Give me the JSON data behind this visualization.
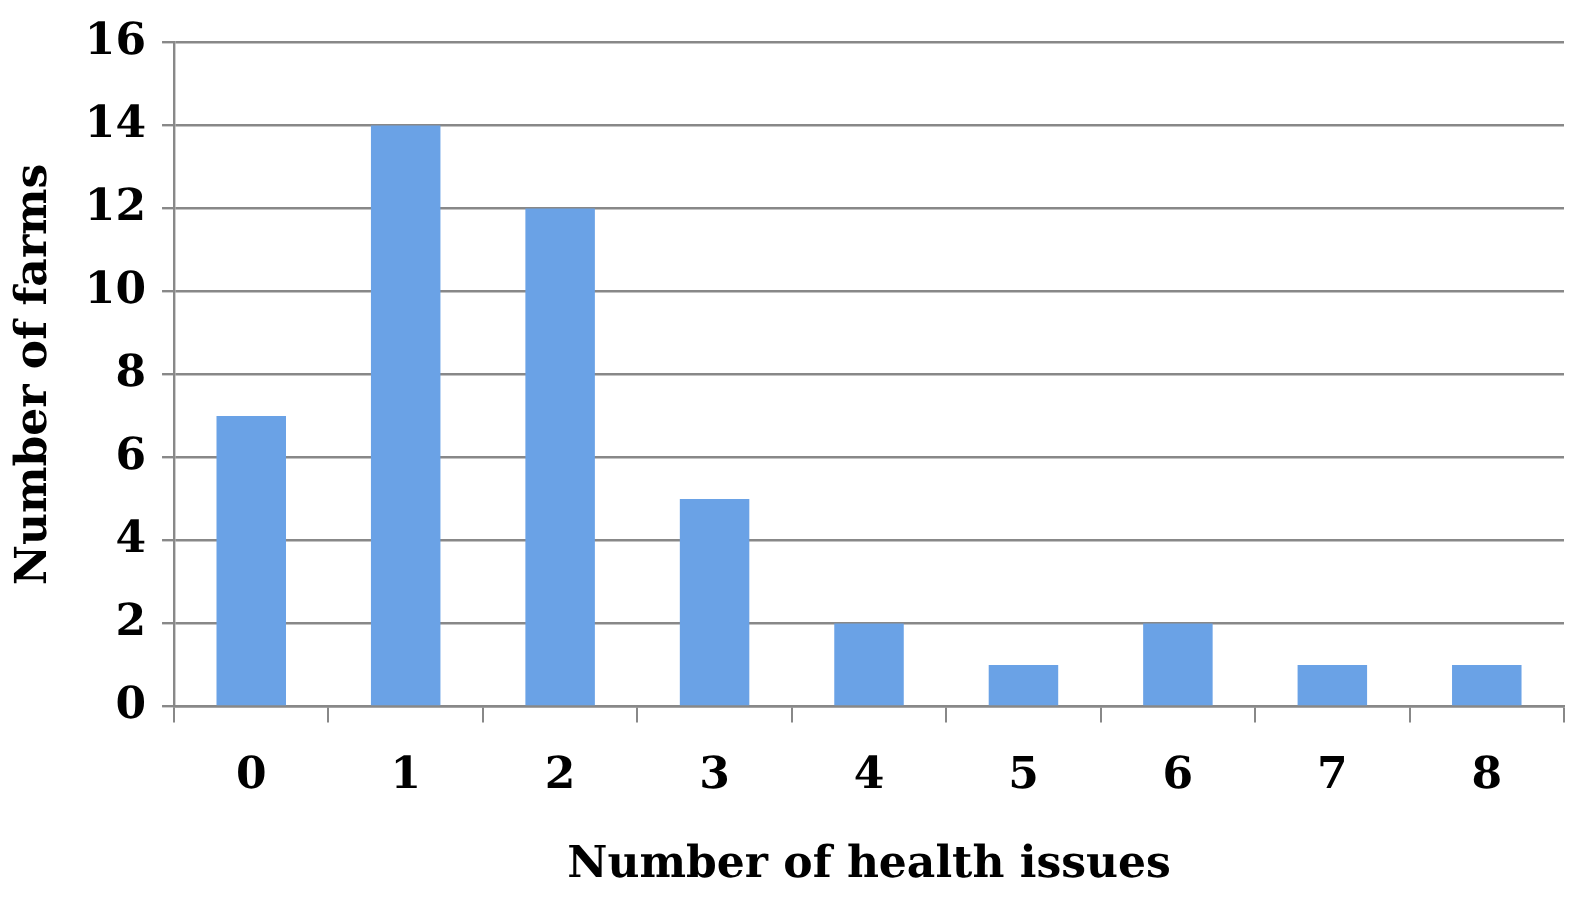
{
  "chart_data": {
    "type": "bar",
    "xlabel": "Number of health issues",
    "ylabel": "Number of farms",
    "categories": [
      "0",
      "1",
      "2",
      "3",
      "4",
      "5",
      "6",
      "7",
      "8"
    ],
    "values": [
      7,
      14,
      12,
      5,
      2,
      1,
      2,
      1,
      1
    ],
    "color": "#6aa2e6",
    "ylim": [
      0,
      16
    ],
    "yticks": [
      0,
      2,
      4,
      6,
      8,
      10,
      12,
      14,
      16
    ],
    "grid": "y",
    "legend": false
  }
}
